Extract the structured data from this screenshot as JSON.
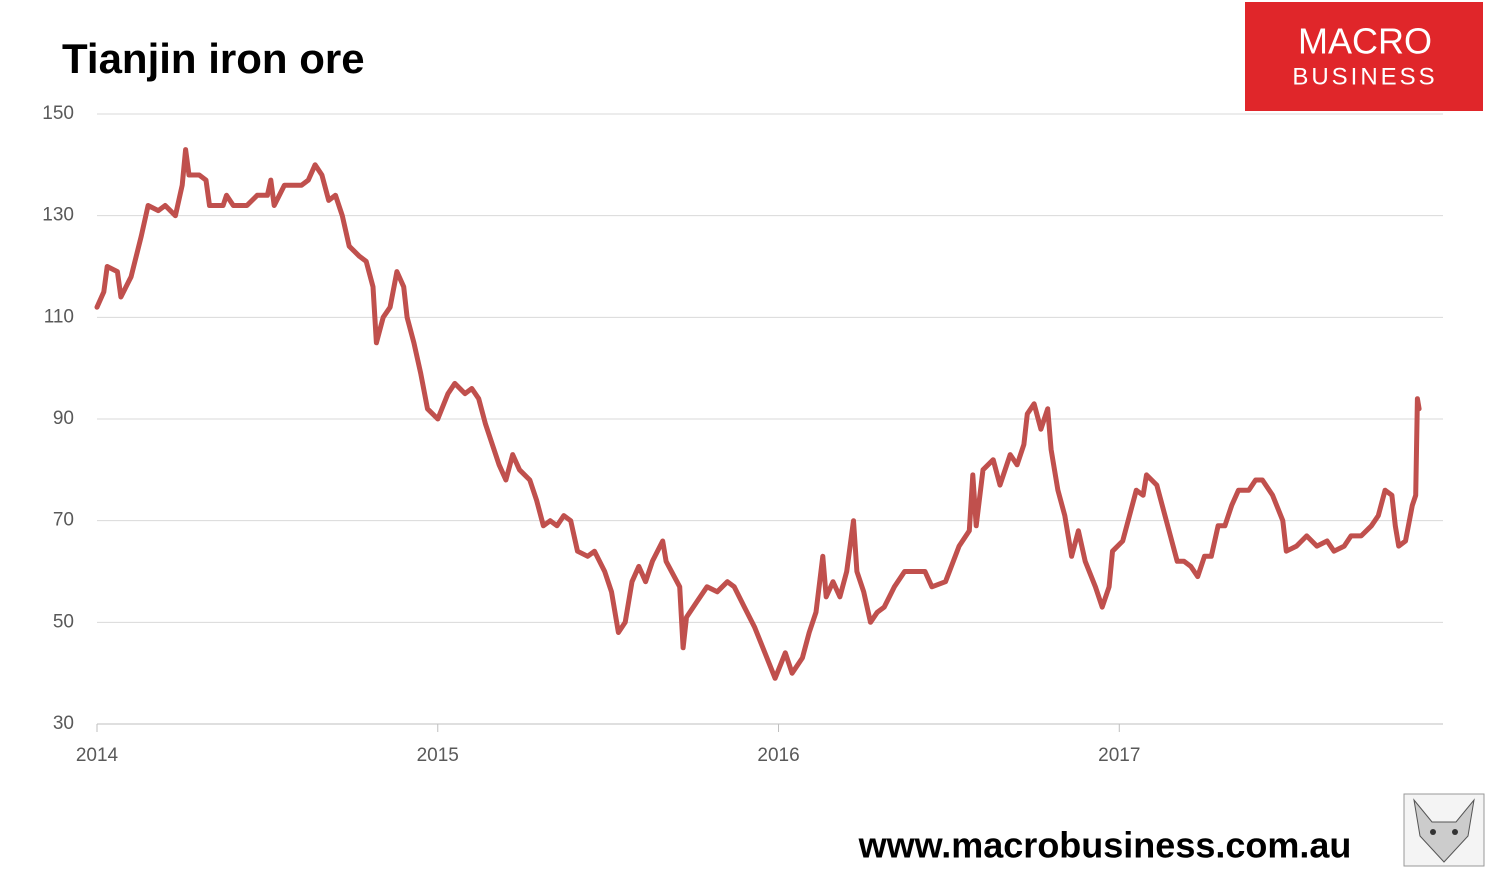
{
  "chart_data": {
    "type": "line",
    "title": "Tianjin iron ore",
    "x": [
      2014.0,
      2014.02,
      2014.03,
      2014.06,
      2014.07,
      2014.1,
      2014.13,
      2014.15,
      2014.18,
      2014.2,
      2014.23,
      2014.25,
      2014.26,
      2014.27,
      2014.3,
      2014.32,
      2014.33,
      2014.37,
      2014.38,
      2014.4,
      2014.44,
      2014.47,
      2014.5,
      2014.51,
      2014.52,
      2014.55,
      2014.6,
      2014.62,
      2014.64,
      2014.66,
      2014.68,
      2014.7,
      2014.72,
      2014.74,
      2014.77,
      2014.79,
      2014.81,
      2014.82,
      2014.84,
      2014.86,
      2014.88,
      2014.9,
      2014.91,
      2014.93,
      2014.95,
      2014.97,
      2015.0,
      2015.03,
      2015.05,
      2015.08,
      2015.1,
      2015.12,
      2015.14,
      2015.16,
      2015.18,
      2015.2,
      2015.22,
      2015.24,
      2015.27,
      2015.29,
      2015.31,
      2015.33,
      2015.35,
      2015.37,
      2015.39,
      2015.41,
      2015.44,
      2015.46,
      2015.49,
      2015.51,
      2015.53,
      2015.55,
      2015.57,
      2015.59,
      2015.61,
      2015.63,
      2015.66,
      2015.67,
      2015.71,
      2015.72,
      2015.73,
      2015.76,
      2015.79,
      2015.82,
      2015.85,
      2015.87,
      2015.9,
      2015.93,
      2015.96,
      2015.99,
      2016.02,
      2016.04,
      2016.07,
      2016.09,
      2016.11,
      2016.13,
      2016.14,
      2016.16,
      2016.18,
      2016.2,
      2016.22,
      2016.23,
      2016.25,
      2016.27,
      2016.29,
      2016.31,
      2016.34,
      2016.37,
      2016.39,
      2016.43,
      2016.45,
      2016.49,
      2016.53,
      2016.56,
      2016.57,
      2016.58,
      2016.6,
      2016.63,
      2016.65,
      2016.68,
      2016.7,
      2016.72,
      2016.73,
      2016.75,
      2016.77,
      2016.79,
      2016.8,
      2016.82,
      2016.84,
      2016.86,
      2016.88,
      2016.9,
      2016.93,
      2016.95,
      2016.97,
      2016.98,
      2017.01,
      2017.03,
      2017.05,
      2017.07,
      2017.08,
      2017.11,
      2017.13,
      2017.15,
      2017.17,
      2017.19,
      2017.21,
      2017.23,
      2017.25,
      2017.27,
      2017.29,
      2017.31,
      2017.33,
      2017.35,
      2017.38,
      2017.4,
      2017.42,
      2017.45,
      2017.48,
      2017.49,
      2017.52,
      2017.55,
      2017.58,
      2017.61,
      2017.63,
      2017.66,
      2017.68,
      2017.71,
      2017.74,
      2017.76,
      2017.78,
      2017.8,
      2017.81,
      2017.82,
      2017.84,
      2017.86,
      2017.87,
      2017.875,
      2017.88
    ],
    "values": [
      112,
      115,
      120,
      119,
      114,
      118,
      126,
      132,
      131,
      132,
      130,
      136,
      143,
      138,
      138,
      137,
      132,
      132,
      134,
      132,
      132,
      134,
      134,
      137,
      132,
      136,
      136,
      137,
      140,
      138,
      133,
      134,
      130,
      124,
      122,
      121,
      116,
      105,
      110,
      112,
      119,
      116,
      110,
      105,
      99,
      92,
      90,
      95,
      97,
      95,
      96,
      94,
      89,
      85,
      81,
      78,
      83,
      80,
      78,
      74,
      69,
      70,
      69,
      71,
      70,
      64,
      63,
      64,
      60,
      56,
      48,
      50,
      58,
      61,
      58,
      62,
      66,
      62,
      57,
      45,
      51,
      54,
      57,
      56,
      58,
      57,
      53,
      49,
      44,
      39,
      44,
      40,
      43,
      48,
      52,
      63,
      55,
      58,
      55,
      60,
      70,
      60,
      56,
      50,
      52,
      53,
      57,
      60,
      60,
      60,
      57,
      58,
      65,
      68,
      79,
      69,
      80,
      82,
      77,
      83,
      81,
      85,
      91,
      93,
      88,
      92,
      84,
      76,
      71,
      63,
      68,
      62,
      57,
      53,
      57,
      64,
      66,
      71,
      76,
      75,
      79,
      77,
      72,
      67,
      62,
      62,
      61,
      59,
      63,
      63,
      69,
      69,
      73,
      76,
      76,
      78,
      78,
      75,
      70,
      64,
      65,
      67,
      65,
      66,
      64,
      65,
      67,
      67,
      69,
      71,
      76,
      75,
      69,
      65,
      66,
      73,
      75,
      94,
      92
    ],
    "color": "#c0504d",
    "xlim": [
      2014,
      2017.95
    ],
    "xticks": [
      2014,
      2015,
      2016,
      2017
    ],
    "ylim": [
      30,
      150
    ],
    "yticks": [
      30,
      50,
      70,
      90,
      110,
      130,
      150
    ],
    "grid": true
  },
  "branding": {
    "logo_top": "MACRO",
    "logo_bottom": "BUSINESS",
    "url": "www.macrobusiness.com.au"
  }
}
